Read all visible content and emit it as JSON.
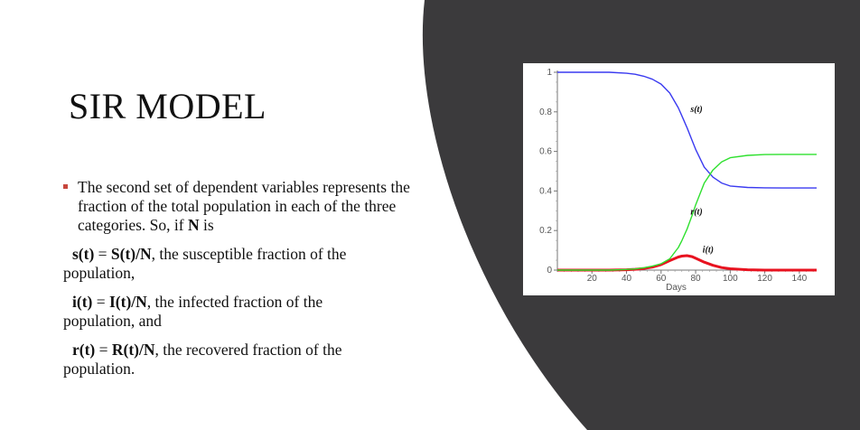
{
  "slide": {
    "title": "SIR MODEL",
    "background_accent": "#3b3a3c",
    "bullet_color": "#c7463d",
    "bullet": {
      "text_a": "The second set of dependent variables represents the fraction of the total population in each of the three categories. So, if ",
      "bold_n": "N",
      "text_b": " is"
    },
    "definitions": [
      {
        "lhs": "s(t)",
        "eq": " = ",
        "rhs": "S(t)/N",
        "desc": ", the susceptible fraction of the population,"
      },
      {
        "lhs": "i(t)",
        "eq": " = ",
        "rhs": "I(t)/N",
        "desc": ", the infected fraction of the population, and"
      },
      {
        "lhs": "r(t)",
        "eq": " = ",
        "rhs": "R(t)/N",
        "desc": ", the recovered fraction of the population."
      }
    ]
  },
  "chart_data": {
    "type": "line",
    "xlabel": "Days",
    "ylabel": "",
    "xlim": [
      0,
      150
    ],
    "ylim": [
      0,
      1
    ],
    "x_ticks": [
      20,
      40,
      60,
      80,
      100,
      120,
      140
    ],
    "y_ticks": [
      0,
      0.2,
      0.4,
      0.6,
      0.8,
      1
    ],
    "x": [
      0,
      10,
      20,
      30,
      40,
      45,
      50,
      55,
      60,
      65,
      70,
      72,
      75,
      78,
      80,
      85,
      90,
      95,
      100,
      110,
      120,
      130,
      140,
      150
    ],
    "series": [
      {
        "name": "s(t)",
        "color": "#3a3af0",
        "values": [
          1.0,
          1.0,
          1.0,
          1.0,
          0.995,
          0.99,
          0.98,
          0.965,
          0.94,
          0.895,
          0.82,
          0.78,
          0.72,
          0.655,
          0.61,
          0.52,
          0.47,
          0.44,
          0.425,
          0.418,
          0.416,
          0.415,
          0.415,
          0.415
        ]
      },
      {
        "name": "i(t)",
        "color": "#e8121f",
        "values": [
          0.0,
          0.0,
          0.0,
          0.0,
          0.002,
          0.004,
          0.008,
          0.015,
          0.028,
          0.048,
          0.066,
          0.071,
          0.073,
          0.068,
          0.06,
          0.04,
          0.024,
          0.013,
          0.007,
          0.002,
          0.0,
          0.0,
          0.0,
          0.0
        ]
      },
      {
        "name": "r(t)",
        "color": "#2ee02e",
        "values": [
          0.0,
          0.0,
          0.0,
          0.0,
          0.003,
          0.006,
          0.012,
          0.02,
          0.032,
          0.057,
          0.114,
          0.149,
          0.207,
          0.277,
          0.33,
          0.44,
          0.506,
          0.547,
          0.568,
          0.58,
          0.584,
          0.585,
          0.585,
          0.585
        ]
      }
    ],
    "annotations": [
      {
        "text": "s(t)",
        "x": 77,
        "y": 0.8
      },
      {
        "text": "r(t)",
        "x": 77,
        "y": 0.28
      },
      {
        "text": "i(t)",
        "x": 84,
        "y": 0.09
      }
    ],
    "grid": false,
    "legend": "none"
  }
}
